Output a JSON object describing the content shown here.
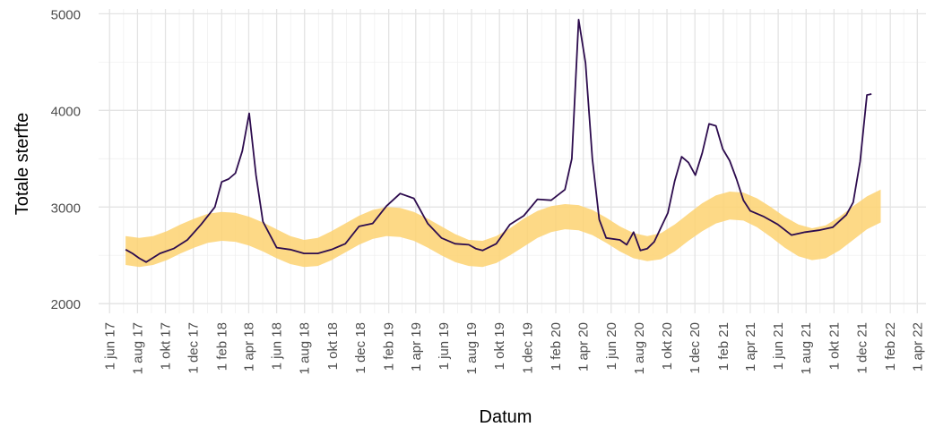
{
  "chart_data": {
    "type": "line",
    "title": "",
    "xlabel": "Datum",
    "ylabel": "Totale sterfte",
    "ylim": [
      1900,
      5050
    ],
    "xlim": [
      "2017-05-08",
      "2022-04-20"
    ],
    "grid": true,
    "legend": "none",
    "y_ticks": [
      2000,
      3000,
      4000,
      5000
    ],
    "x_ticks": [
      {
        "date": "2017-06-01",
        "label": "1 jun 17"
      },
      {
        "date": "2017-08-01",
        "label": "1 aug 17"
      },
      {
        "date": "2017-10-01",
        "label": "1 okt 17"
      },
      {
        "date": "2017-12-01",
        "label": "1 dec 17"
      },
      {
        "date": "2018-02-01",
        "label": "1 feb 18"
      },
      {
        "date": "2018-04-01",
        "label": "1 apr 18"
      },
      {
        "date": "2018-06-01",
        "label": "1 jun 18"
      },
      {
        "date": "2018-08-01",
        "label": "1 aug 18"
      },
      {
        "date": "2018-10-01",
        "label": "1 okt 18"
      },
      {
        "date": "2018-12-01",
        "label": "1 dec 18"
      },
      {
        "date": "2019-02-01",
        "label": "1 feb 19"
      },
      {
        "date": "2019-04-01",
        "label": "1 apr 19"
      },
      {
        "date": "2019-06-01",
        "label": "1 jun 19"
      },
      {
        "date": "2019-08-01",
        "label": "1 aug 19"
      },
      {
        "date": "2019-10-01",
        "label": "1 okt 19"
      },
      {
        "date": "2019-12-01",
        "label": "1 dec 19"
      },
      {
        "date": "2020-02-01",
        "label": "1 feb 20"
      },
      {
        "date": "2020-04-01",
        "label": "1 apr 20"
      },
      {
        "date": "2020-06-01",
        "label": "1 jun 20"
      },
      {
        "date": "2020-08-01",
        "label": "1 aug 20"
      },
      {
        "date": "2020-10-01",
        "label": "1 okt 20"
      },
      {
        "date": "2020-12-01",
        "label": "1 dec 20"
      },
      {
        "date": "2021-02-01",
        "label": "1 feb 21"
      },
      {
        "date": "2021-04-01",
        "label": "1 apr 21"
      },
      {
        "date": "2021-06-01",
        "label": "1 jun 21"
      },
      {
        "date": "2021-08-01",
        "label": "1 aug 21"
      },
      {
        "date": "2021-10-01",
        "label": "1 okt 21"
      },
      {
        "date": "2021-12-01",
        "label": "1 dec 21"
      },
      {
        "date": "2022-02-01",
        "label": "1 feb 22"
      },
      {
        "date": "2022-04-01",
        "label": "1 apr 22"
      }
    ],
    "series": [
      {
        "type": "line",
        "color": "#2d0c4e",
        "x": [
          "2017-07-06",
          "2017-07-21",
          "2017-08-05",
          "2017-08-20",
          "2017-09-19",
          "2017-10-19",
          "2017-11-18",
          "2017-12-18",
          "2018-01-17",
          "2018-02-01",
          "2018-02-16",
          "2018-03-03",
          "2018-03-18",
          "2018-04-02",
          "2018-04-17",
          "2018-05-02",
          "2018-06-01",
          "2018-07-01",
          "2018-07-31",
          "2018-08-30",
          "2018-09-29",
          "2018-10-29",
          "2018-11-28",
          "2018-12-28",
          "2019-01-27",
          "2019-02-26",
          "2019-03-28",
          "2019-04-27",
          "2019-05-27",
          "2019-06-26",
          "2019-07-26",
          "2019-08-10",
          "2019-08-25",
          "2019-09-24",
          "2019-10-24",
          "2019-11-23",
          "2019-12-23",
          "2020-01-22",
          "2020-02-21",
          "2020-03-07",
          "2020-03-22",
          "2020-04-06",
          "2020-04-21",
          "2020-05-06",
          "2020-05-21",
          "2020-06-20",
          "2020-07-05",
          "2020-07-20",
          "2020-08-04",
          "2020-08-19",
          "2020-09-03",
          "2020-10-03",
          "2020-10-18",
          "2020-11-02",
          "2020-11-17",
          "2020-12-02",
          "2020-12-17",
          "2021-01-01",
          "2021-01-16",
          "2021-01-31",
          "2021-02-15",
          "2021-03-02",
          "2021-03-17",
          "2021-04-01",
          "2021-05-01",
          "2021-05-31",
          "2021-06-30",
          "2021-07-30",
          "2021-08-29",
          "2021-09-28",
          "2021-10-28",
          "2021-11-12",
          "2021-11-27",
          "2021-12-12",
          "2021-12-22"
        ],
        "values": [
          2560,
          2520,
          2470,
          2430,
          2520,
          2570,
          2660,
          2820,
          3000,
          3260,
          3290,
          3350,
          3580,
          3970,
          3330,
          2850,
          2580,
          2560,
          2520,
          2520,
          2560,
          2620,
          2800,
          2830,
          3010,
          3140,
          3090,
          2830,
          2680,
          2620,
          2610,
          2570,
          2550,
          2620,
          2820,
          2910,
          3080,
          3070,
          3180,
          3500,
          4940,
          4490,
          3500,
          2870,
          2680,
          2660,
          2610,
          2740,
          2550,
          2570,
          2640,
          2940,
          3270,
          3520,
          3460,
          3330,
          3560,
          3860,
          3840,
          3600,
          3480,
          3290,
          3070,
          2960,
          2900,
          2820,
          2710,
          2740,
          2760,
          2790,
          2920,
          3050,
          3470,
          4160,
          4170
        ]
      },
      {
        "type": "band",
        "color": "#fdd271",
        "x": [
          "2017-07-06",
          "2017-08-05",
          "2017-09-04",
          "2017-10-04",
          "2017-11-03",
          "2017-12-03",
          "2018-01-02",
          "2018-02-01",
          "2018-03-03",
          "2018-04-02",
          "2018-05-02",
          "2018-06-01",
          "2018-07-01",
          "2018-07-31",
          "2018-08-30",
          "2018-09-29",
          "2018-10-29",
          "2018-11-28",
          "2018-12-28",
          "2019-01-27",
          "2019-02-26",
          "2019-03-28",
          "2019-04-27",
          "2019-05-27",
          "2019-06-26",
          "2019-07-26",
          "2019-08-25",
          "2019-09-24",
          "2019-10-24",
          "2019-11-23",
          "2019-12-23",
          "2020-01-22",
          "2020-02-21",
          "2020-03-22",
          "2020-04-21",
          "2020-05-21",
          "2020-06-20",
          "2020-07-20",
          "2020-08-19",
          "2020-09-18",
          "2020-10-18",
          "2020-11-17",
          "2020-12-17",
          "2021-01-16",
          "2021-02-15",
          "2021-03-17",
          "2021-04-16",
          "2021-05-16",
          "2021-06-15",
          "2021-07-15",
          "2021-08-14",
          "2021-09-13",
          "2021-10-13",
          "2021-11-12",
          "2021-12-12",
          "2022-01-11"
        ],
        "upper": [
          2700,
          2680,
          2700,
          2750,
          2820,
          2880,
          2930,
          2950,
          2940,
          2900,
          2840,
          2770,
          2700,
          2660,
          2680,
          2750,
          2830,
          2910,
          2970,
          3000,
          2990,
          2950,
          2880,
          2800,
          2720,
          2660,
          2650,
          2700,
          2780,
          2880,
          2960,
          3010,
          3030,
          3020,
          2970,
          2890,
          2800,
          2730,
          2700,
          2730,
          2820,
          2930,
          3040,
          3120,
          3160,
          3150,
          3090,
          3000,
          2900,
          2820,
          2780,
          2810,
          2900,
          3010,
          3110,
          3180
        ],
        "lower": [
          2400,
          2380,
          2400,
          2450,
          2520,
          2580,
          2630,
          2650,
          2640,
          2600,
          2540,
          2470,
          2410,
          2380,
          2390,
          2450,
          2530,
          2610,
          2670,
          2700,
          2690,
          2650,
          2580,
          2500,
          2430,
          2390,
          2380,
          2420,
          2500,
          2590,
          2680,
          2740,
          2770,
          2760,
          2710,
          2630,
          2540,
          2470,
          2440,
          2460,
          2540,
          2650,
          2750,
          2830,
          2870,
          2860,
          2790,
          2690,
          2580,
          2490,
          2450,
          2470,
          2550,
          2660,
          2770,
          2840
        ]
      }
    ]
  }
}
